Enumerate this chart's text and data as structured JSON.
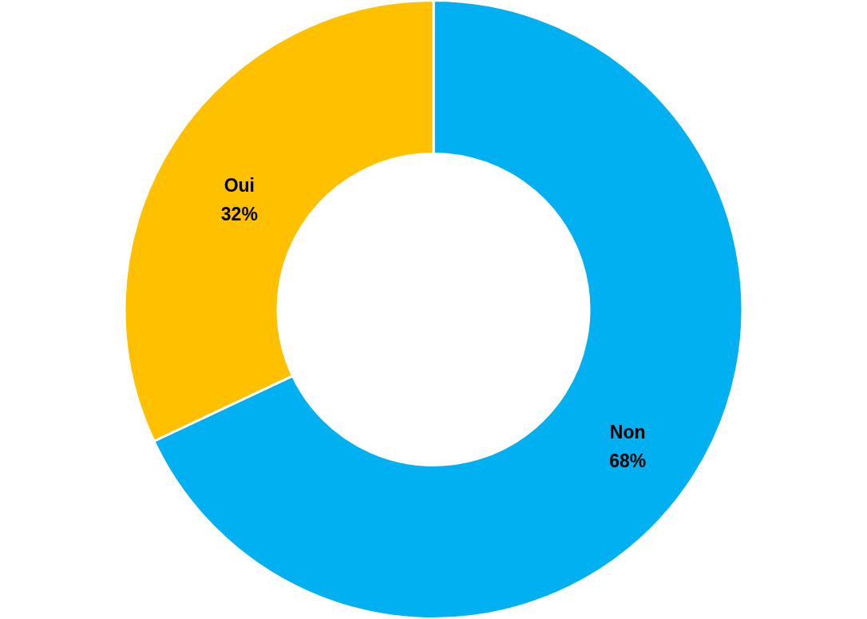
{
  "chart_data": {
    "type": "donut",
    "categories": [
      "Non",
      "Oui"
    ],
    "values": [
      68,
      32
    ],
    "colors": [
      "#00b0f0",
      "#ffc000"
    ],
    "value_labels": [
      "68%",
      "32%"
    ]
  }
}
